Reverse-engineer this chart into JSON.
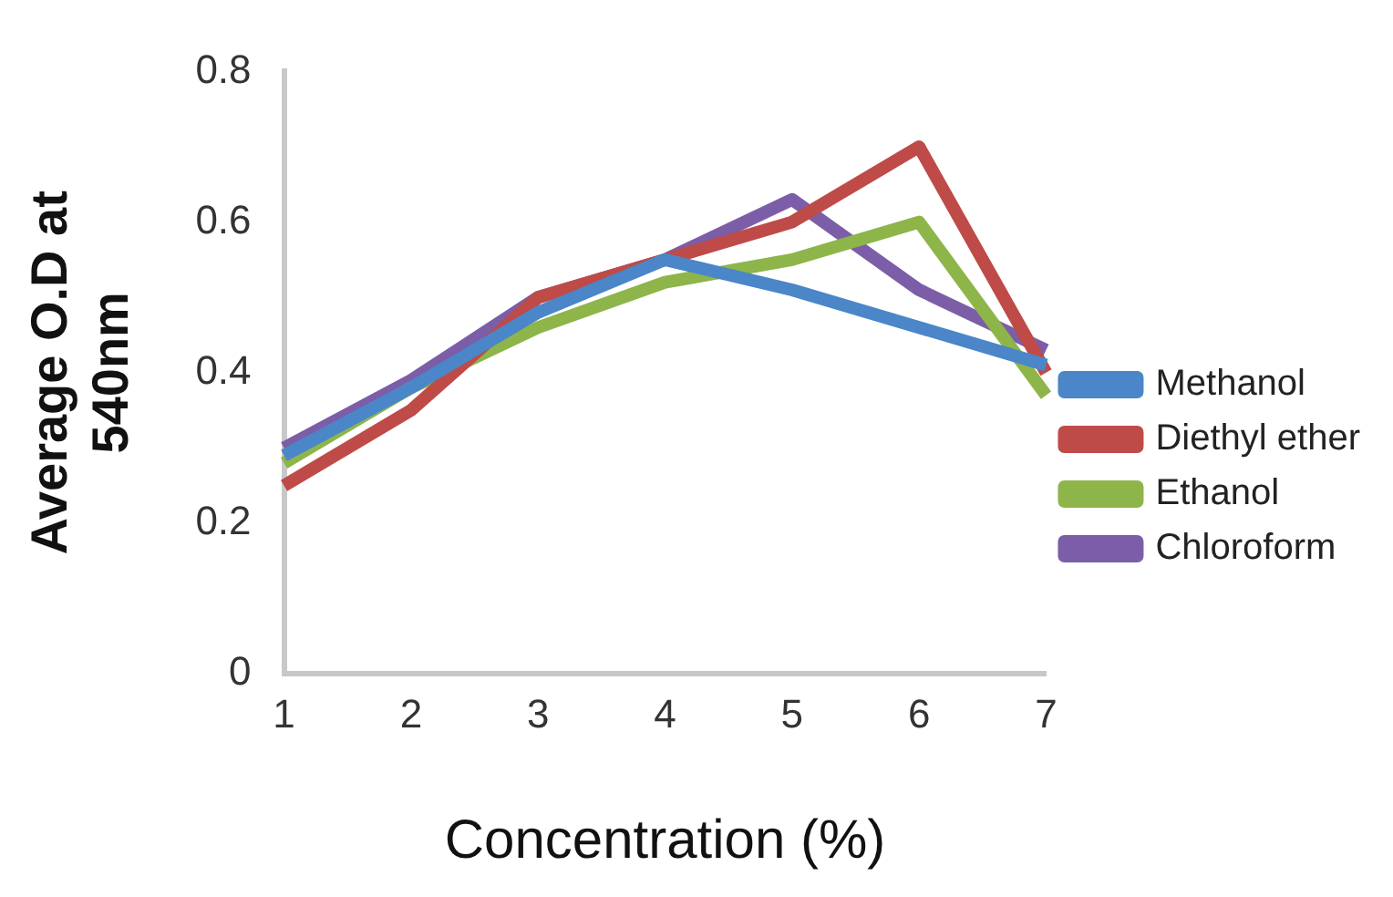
{
  "chart_data": {
    "type": "line",
    "xlabel": "Concentration (%)",
    "ylabel": "Average O.D at 540nm",
    "categories": [
      "1",
      "2",
      "3",
      "4",
      "5",
      "6",
      "7"
    ],
    "ylim": [
      0,
      0.8
    ],
    "yticks": [
      0,
      0.2,
      0.4,
      0.6,
      0.8
    ],
    "grid": false,
    "legend": "right",
    "marker": "none",
    "line_style": "solid",
    "series": [
      {
        "name": "Methanol",
        "color": "#4a86c8",
        "values": [
          0.29,
          0.38,
          0.48,
          0.55,
          0.51,
          0.46,
          0.41
        ]
      },
      {
        "name": "Diethyl ether",
        "color": "#be4b48",
        "values": [
          0.25,
          0.35,
          0.5,
          0.55,
          0.6,
          0.7,
          0.4
        ]
      },
      {
        "name": "Ethanol",
        "color": "#8db54a",
        "values": [
          0.28,
          0.38,
          0.46,
          0.52,
          0.55,
          0.6,
          0.37
        ]
      },
      {
        "name": "Chloroform",
        "color": "#7b5ea7",
        "values": [
          0.3,
          0.39,
          0.5,
          0.55,
          0.63,
          0.51,
          0.43
        ]
      }
    ]
  }
}
